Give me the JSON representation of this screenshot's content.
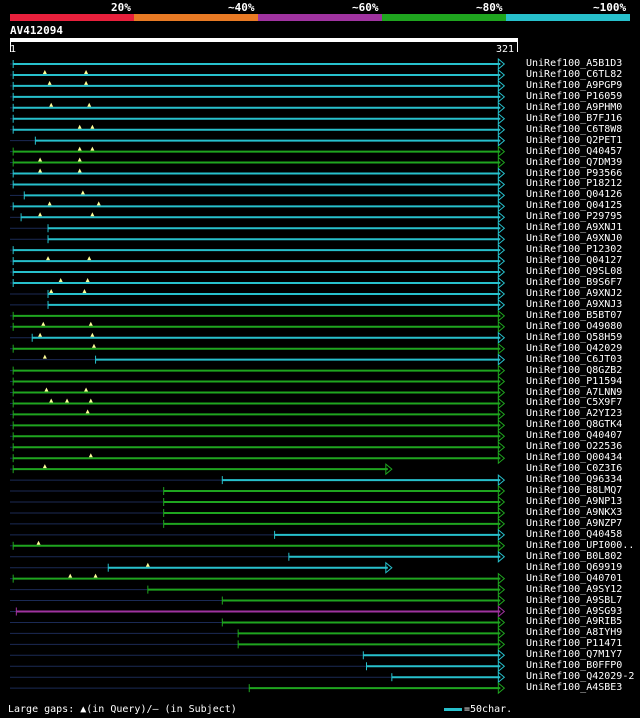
{
  "identity_scale": {
    "labels": [
      "20%",
      "~40%",
      "~60%",
      "~80%",
      "~100%"
    ],
    "colors": [
      "#e8203c",
      "#e87a24",
      "#a033a0",
      "#1fa51f",
      "#27c0cc"
    ]
  },
  "query": {
    "name": "AV412094",
    "start": "1",
    "end": "321"
  },
  "hits": [
    {
      "label": "UniRef100_A5B1D3",
      "color": "#27c0cc",
      "start": 3,
      "end": 313
    },
    {
      "label": "UniRef100_C6TL82",
      "color": "#27c0cc",
      "start": 3,
      "end": 313,
      "gap_marks": [
        23,
        49
      ]
    },
    {
      "label": "UniRef100_A9PGP9",
      "color": "#27c0cc",
      "start": 3,
      "end": 313,
      "gap_marks": [
        26,
        49
      ]
    },
    {
      "label": "UniRef100_P16059",
      "color": "#27c0cc",
      "start": 3,
      "end": 313
    },
    {
      "label": "UniRef100_A9PHM0",
      "color": "#27c0cc",
      "start": 3,
      "end": 313,
      "gap_marks": [
        27,
        51
      ]
    },
    {
      "label": "UniRef100_B7FJ16",
      "color": "#27c0cc",
      "start": 3,
      "end": 313
    },
    {
      "label": "UniRef100_C6T8W8",
      "color": "#27c0cc",
      "start": 3,
      "end": 313,
      "gap_marks": [
        45,
        53
      ]
    },
    {
      "label": "UniRef100_Q2PET1",
      "color": "#27c0cc",
      "start": 17,
      "end": 313
    },
    {
      "label": "UniRef100_Q40457",
      "color": "#1fa51f",
      "start": 3,
      "end": 313,
      "gap_marks": [
        45,
        53
      ]
    },
    {
      "label": "UniRef100_Q7DM39",
      "color": "#1fa51f",
      "start": 3,
      "end": 313,
      "gap_marks": [
        20,
        45
      ]
    },
    {
      "label": "UniRef100_P93566",
      "color": "#27c0cc",
      "start": 3,
      "end": 313,
      "gap_marks": [
        20,
        45
      ]
    },
    {
      "label": "UniRef100_P18212",
      "color": "#27c0cc",
      "start": 3,
      "end": 313
    },
    {
      "label": "UniRef100_Q04126",
      "color": "#27c0cc",
      "start": 10,
      "end": 313,
      "gap_marks": [
        47
      ]
    },
    {
      "label": "UniRef100_Q04125",
      "color": "#27c0cc",
      "start": 3,
      "end": 313,
      "gap_marks": [
        26,
        57
      ]
    },
    {
      "label": "UniRef100_P29795",
      "color": "#27c0cc",
      "start": 8,
      "end": 313,
      "gap_marks": [
        20,
        53
      ]
    },
    {
      "label": "UniRef100_A9XNJ1",
      "color": "#27c0cc",
      "start": 25,
      "end": 313
    },
    {
      "label": "UniRef100_A9XNJ0",
      "color": "#27c0cc",
      "start": 25,
      "end": 313
    },
    {
      "label": "UniRef100_P12302",
      "color": "#27c0cc",
      "start": 3,
      "end": 313
    },
    {
      "label": "UniRef100_Q04127",
      "color": "#27c0cc",
      "start": 3,
      "end": 313,
      "gap_marks": [
        25,
        51
      ]
    },
    {
      "label": "UniRef100_Q9SL08",
      "color": "#27c0cc",
      "start": 3,
      "end": 313
    },
    {
      "label": "UniRef100_B9S6F7",
      "color": "#27c0cc",
      "start": 3,
      "end": 313,
      "gap_marks": [
        33,
        50
      ]
    },
    {
      "label": "UniRef100_A9XNJ2",
      "color": "#27c0cc",
      "start": 25,
      "end": 313,
      "gap_marks": [
        27,
        48
      ]
    },
    {
      "label": "UniRef100_A9XNJ3",
      "color": "#27c0cc",
      "start": 25,
      "end": 313
    },
    {
      "label": "UniRef100_B5BT07",
      "color": "#1fa51f",
      "start": 3,
      "end": 313
    },
    {
      "label": "UniRef100_O49080",
      "color": "#1fa51f",
      "start": 3,
      "end": 313,
      "gap_marks": [
        22,
        52
      ]
    },
    {
      "label": "UniRef100_Q58H59",
      "color": "#27c0cc",
      "start": 15,
      "end": 313,
      "gap_marks": [
        20,
        53
      ]
    },
    {
      "label": "UniRef100_Q42029",
      "color": "#1fa51f",
      "start": 3,
      "end": 313,
      "gap_marks": [
        54
      ]
    },
    {
      "label": "UniRef100_C6JT03",
      "color": "#27c0cc",
      "start": 55,
      "end": 313,
      "gap_marks": [
        23
      ]
    },
    {
      "label": "UniRef100_Q8GZB2",
      "color": "#1fa51f",
      "start": 3,
      "end": 313
    },
    {
      "label": "UniRef100_P11594",
      "color": "#1fa51f",
      "start": 3,
      "end": 313
    },
    {
      "label": "UniRef100_A7LNN9",
      "color": "#1fa51f",
      "start": 3,
      "end": 313,
      "gap_marks": [
        24,
        49
      ]
    },
    {
      "label": "UniRef100_C5X9F7",
      "color": "#1fa51f",
      "start": 3,
      "end": 313,
      "gap_marks": [
        27,
        37,
        52
      ]
    },
    {
      "label": "UniRef100_A2YI23",
      "color": "#1fa51f",
      "start": 3,
      "end": 313,
      "gap_marks": [
        50
      ]
    },
    {
      "label": "UniRef100_Q8GTK4",
      "color": "#1fa51f",
      "start": 3,
      "end": 313
    },
    {
      "label": "UniRef100_Q40407",
      "color": "#1fa51f",
      "start": 3,
      "end": 313
    },
    {
      "label": "UniRef100_O22536",
      "color": "#1fa51f",
      "start": 3,
      "end": 313
    },
    {
      "label": "UniRef100_Q00434",
      "color": "#1fa51f",
      "start": 3,
      "end": 313,
      "gap_marks": [
        52
      ]
    },
    {
      "label": "UniRef100_C0Z3I6",
      "color": "#1fa51f",
      "start": 3,
      "end": 242,
      "gap_marks": [
        23
      ]
    },
    {
      "label": "UniRef100_Q96334",
      "color": "#27c0cc",
      "start": 135,
      "end": 313
    },
    {
      "label": "UniRef100_B8LMQ7",
      "color": "#1fa51f",
      "start": 98,
      "end": 313
    },
    {
      "label": "UniRef100_A9NP13",
      "color": "#1fa51f",
      "start": 98,
      "end": 313
    },
    {
      "label": "UniRef100_A9NKX3",
      "color": "#1fa51f",
      "start": 98,
      "end": 313
    },
    {
      "label": "UniRef100_A9NZP7",
      "color": "#1fa51f",
      "start": 98,
      "end": 313
    },
    {
      "label": "UniRef100_Q40458",
      "color": "#27c0cc",
      "start": 168,
      "end": 313
    },
    {
      "label": "UniRef100_UPI000..",
      "color": "#1fa51f",
      "start": 3,
      "end": 313,
      "gap_marks": [
        19
      ]
    },
    {
      "label": "UniRef100_B0L802",
      "color": "#27c0cc",
      "start": 177,
      "end": 313
    },
    {
      "label": "UniRef100_Q69919",
      "color": "#27c0cc",
      "start": 63,
      "end": 242,
      "gap_marks": [
        88
      ]
    },
    {
      "label": "UniRef100_Q40701",
      "color": "#1fa51f",
      "start": 3,
      "end": 313,
      "gap_marks": [
        39,
        55
      ]
    },
    {
      "label": "UniRef100_A9SY12",
      "color": "#1fa51f",
      "start": 88,
      "end": 313
    },
    {
      "label": "UniRef100_A9SBL7",
      "color": "#1fa51f",
      "start": 135,
      "end": 313
    },
    {
      "label": "UniRef100_A9SG93",
      "color": "#a033a0",
      "start": 5,
      "end": 313
    },
    {
      "label": "UniRef100_A9RIB5",
      "color": "#1fa51f",
      "start": 135,
      "end": 313
    },
    {
      "label": "UniRef100_A8IYH9",
      "color": "#1fa51f",
      "start": 145,
      "end": 313
    },
    {
      "label": "UniRef100_P11471",
      "color": "#1fa51f",
      "start": 145,
      "end": 313
    },
    {
      "label": "UniRef100_Q7M1Y7",
      "color": "#27c0cc",
      "start": 224,
      "end": 313
    },
    {
      "label": "UniRef100_B0FFP0",
      "color": "#27c0cc",
      "start": 226,
      "end": 313
    },
    {
      "label": "UniRef100_Q42029-2",
      "color": "#27c0cc",
      "start": 242,
      "end": 313
    },
    {
      "label": "UniRef100_A4SBE3",
      "color": "#1fa51f",
      "start": 152,
      "end": 313
    }
  ],
  "footer": {
    "gaps_text": "Large gaps: ▲(in Query)/– (in Subject)",
    "legend_text": "=50char."
  }
}
